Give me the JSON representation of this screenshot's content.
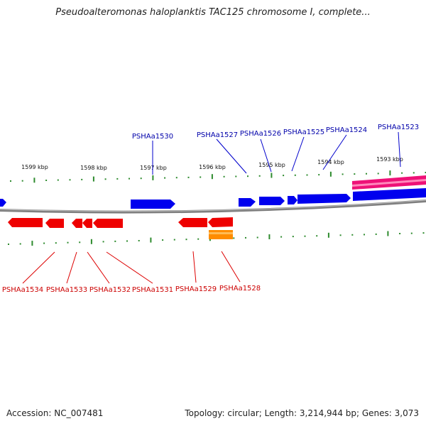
{
  "title": "Pseudoalteromonas haloplanktis TAC125 chromosome I, complete...",
  "footer": {
    "accession": "Accession: NC_007481",
    "summary": "Topology: circular; Length: 3,214,944 bp; Genes: 3,073"
  },
  "colors": {
    "forward_gene": "#0000ee",
    "reverse_gene": "#ee0000",
    "rna_feature": "#ff8c00",
    "highlight_feature": "#ee1177",
    "backbone": "#888888",
    "tick": "#2e8b2e",
    "forward_label": "#0000aa",
    "reverse_label": "#cc0000"
  },
  "ruler_labels": [
    "1599 kbp",
    "1598 kbp",
    "1597 kbp",
    "1596 kbp",
    "1595 kbp",
    "1594 kbp",
    "1593 kbp"
  ],
  "forward_labels": [
    "PSHAa1530",
    "PSHAa1527",
    "PSHAa1526",
    "PSHAa1525",
    "PSHAa1524",
    "PSHAa1523"
  ],
  "reverse_labels": [
    "PSHAa1534",
    "PSHAa1533",
    "PSHAa1532",
    "PSHAa1531",
    "PSHAa1529",
    "PSHAa1528"
  ]
}
